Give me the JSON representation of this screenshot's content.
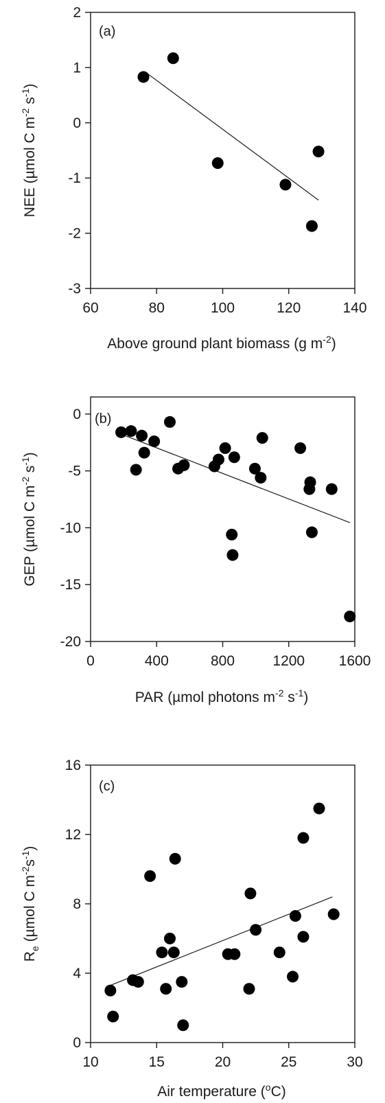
{
  "chart_data": [
    {
      "type": "scatter",
      "panel_label": "(a)",
      "xlabel": {
        "main": "Above ground plant biomass (g m",
        "sup": "-2",
        "end": ")"
      },
      "ylabel": {
        "p1": "NEE (µmol C m",
        "s1": "-2",
        "p2": " s",
        "s2": "-1",
        "p3": ")"
      },
      "xlim": [
        60,
        140
      ],
      "ylim": [
        -3,
        2
      ],
      "xticks": [
        "60",
        "80",
        "100",
        "120",
        "140"
      ],
      "yticks": [
        "-3",
        "-2",
        "-1",
        "0",
        "1",
        "2"
      ],
      "points": [
        [
          76,
          0.83
        ],
        [
          85,
          1.17
        ],
        [
          98.5,
          -0.73
        ],
        [
          119,
          -1.12
        ],
        [
          127,
          -1.87
        ],
        [
          129,
          -0.52
        ]
      ],
      "fit_line": [
        [
          77,
          0.9
        ],
        [
          129,
          -1.4
        ]
      ]
    },
    {
      "type": "scatter",
      "panel_label": "(b)",
      "xlabel": {
        "p1": "PAR (µmol photons  m",
        "s1": "-2",
        "p2": " s",
        "s2": "-1",
        "p3": ")"
      },
      "ylabel": {
        "p1": "GEP (µmol C  m",
        "s1": "-2",
        "p2": " s",
        "s2": "-1",
        "p3": ")"
      },
      "xlim": [
        0,
        1600
      ],
      "ylim": [
        -20,
        1.5
      ],
      "xticks": [
        "0",
        "400",
        "800",
        "1200",
        "1600"
      ],
      "yticks": [
        "-20",
        "-15",
        "-10",
        "-5",
        "0"
      ],
      "points": [
        [
          185,
          -1.6
        ],
        [
          245,
          -1.5
        ],
        [
          275,
          -4.9
        ],
        [
          310,
          -1.9
        ],
        [
          325,
          -3.4
        ],
        [
          385,
          -2.4
        ],
        [
          480,
          -0.7
        ],
        [
          530,
          -4.8
        ],
        [
          565,
          -4.5
        ],
        [
          750,
          -4.6
        ],
        [
          775,
          -4.0
        ],
        [
          815,
          -3.0
        ],
        [
          855,
          -10.6
        ],
        [
          860,
          -12.4
        ],
        [
          870,
          -3.8
        ],
        [
          995,
          -4.8
        ],
        [
          1030,
          -5.6
        ],
        [
          1040,
          -2.1
        ],
        [
          1270,
          -3.0
        ],
        [
          1325,
          -6.6
        ],
        [
          1330,
          -6.0
        ],
        [
          1340,
          -10.4
        ],
        [
          1460,
          -6.6
        ],
        [
          1570,
          -17.8
        ]
      ],
      "fit_line": [
        [
          200,
          -1.85
        ],
        [
          1570,
          -9.55
        ]
      ]
    },
    {
      "type": "scatter",
      "panel_label": "(c)",
      "xlabel": {
        "p1": "Air temperature (",
        "s1": "o",
        "p2": "C)"
      },
      "ylabel": {
        "p1": "R",
        "sub": "e",
        "p2": " (µmol C  m",
        "s1": "-2",
        "p2b": "s",
        "s2": "-1",
        "p3": ")"
      },
      "xlim": [
        10,
        30
      ],
      "ylim": [
        0,
        16
      ],
      "xticks": [
        "10",
        "15",
        "20",
        "25",
        "30"
      ],
      "yticks": [
        "0",
        "4",
        "8",
        "12",
        "16"
      ],
      "points": [
        [
          11.5,
          3.0
        ],
        [
          11.7,
          1.5
        ],
        [
          13.2,
          3.6
        ],
        [
          13.6,
          3.5
        ],
        [
          14.5,
          9.6
        ],
        [
          15.4,
          5.2
        ],
        [
          15.7,
          3.1
        ],
        [
          16.0,
          6.0
        ],
        [
          16.3,
          5.2
        ],
        [
          16.4,
          10.6
        ],
        [
          16.9,
          3.5
        ],
        [
          17.0,
          1.0
        ],
        [
          20.4,
          5.1
        ],
        [
          20.9,
          5.1
        ],
        [
          22.0,
          3.1
        ],
        [
          22.1,
          8.6
        ],
        [
          22.5,
          6.5
        ],
        [
          24.3,
          5.2
        ],
        [
          25.3,
          3.8
        ],
        [
          25.5,
          7.3
        ],
        [
          26.1,
          6.1
        ],
        [
          26.1,
          11.8
        ],
        [
          27.3,
          13.5
        ],
        [
          28.4,
          7.4
        ]
      ],
      "fit_line": [
        [
          11.5,
          3.3
        ],
        [
          28.3,
          8.4
        ]
      ]
    }
  ]
}
